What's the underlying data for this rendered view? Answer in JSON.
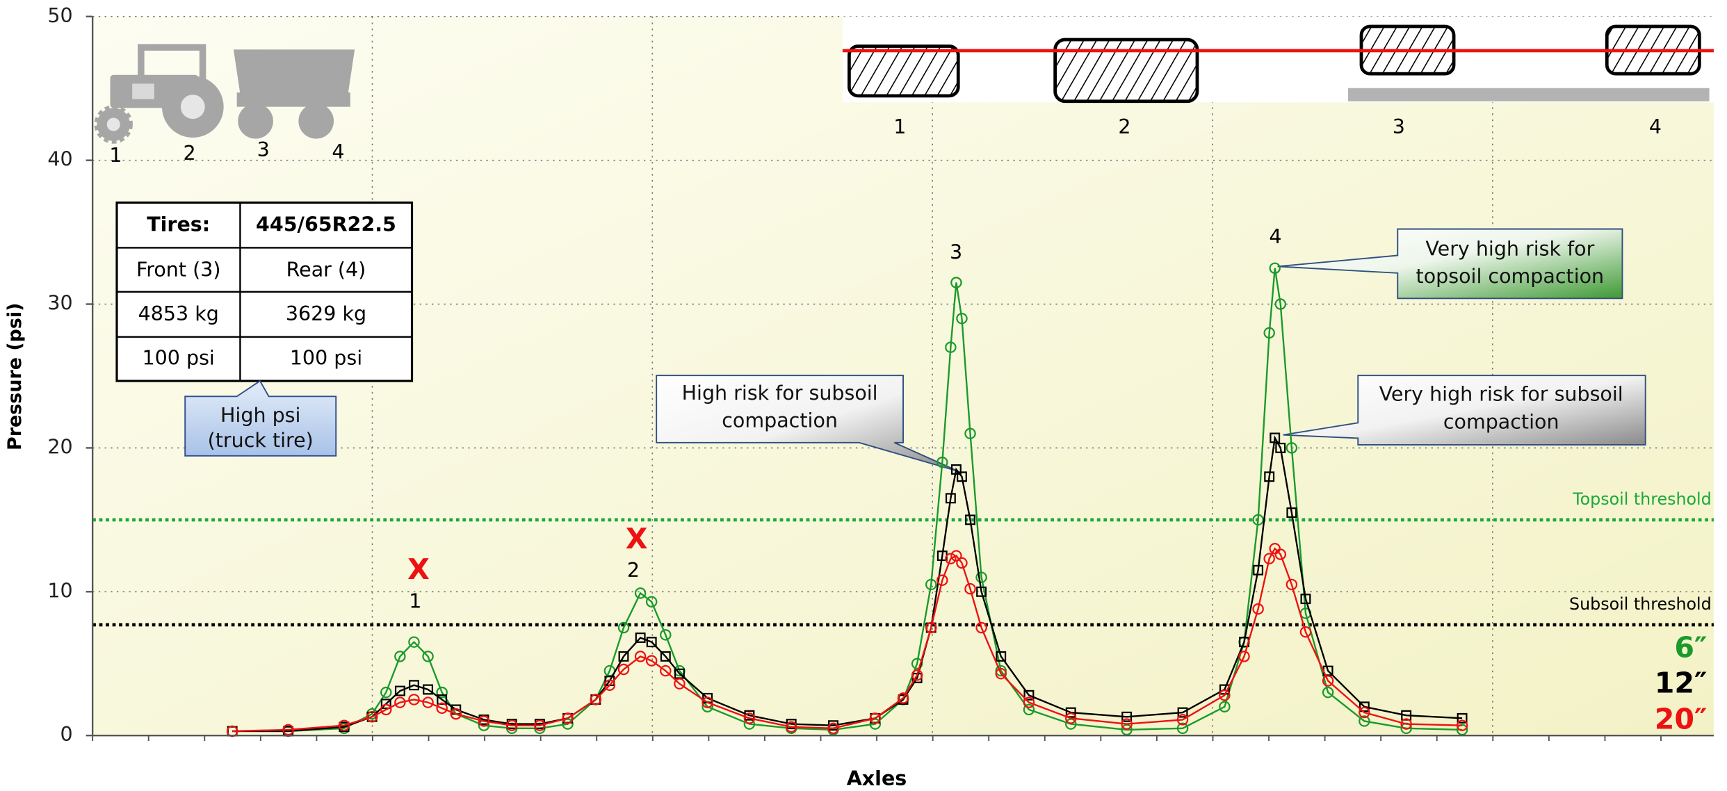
{
  "chart_data": {
    "type": "line",
    "y_label": "Pressure (psi)",
    "x_label": "Axles",
    "ylim": [
      0,
      50
    ],
    "yticks": [
      0,
      10,
      20,
      30,
      40,
      50
    ],
    "xlim": [
      0,
      5.8
    ],
    "grid": true,
    "x": [
      0.5,
      0.7,
      0.9,
      1.0,
      1.05,
      1.1,
      1.15,
      1.2,
      1.25,
      1.3,
      1.4,
      1.5,
      1.6,
      1.7,
      1.8,
      1.85,
      1.9,
      1.96,
      2.0,
      2.05,
      2.1,
      2.2,
      2.35,
      2.5,
      2.65,
      2.8,
      2.9,
      2.95,
      3.0,
      3.04,
      3.07,
      3.09,
      3.11,
      3.14,
      3.18,
      3.25,
      3.35,
      3.5,
      3.7,
      3.9,
      4.05,
      4.12,
      4.17,
      4.21,
      4.23,
      4.25,
      4.29,
      4.34,
      4.42,
      4.55,
      4.7,
      4.9
    ],
    "series": [
      {
        "name": "6″",
        "color": "#1a9a2a",
        "marker": "circle",
        "values": [
          0.3,
          0.3,
          0.5,
          1.5,
          3.0,
          5.5,
          6.5,
          5.5,
          3.0,
          1.5,
          0.7,
          0.5,
          0.5,
          0.8,
          2.5,
          4.5,
          7.5,
          9.9,
          9.3,
          7.0,
          4.5,
          2.0,
          0.8,
          0.5,
          0.4,
          0.8,
          2.5,
          5.0,
          10.5,
          19,
          27,
          31.5,
          29,
          21,
          11,
          4.5,
          1.8,
          0.8,
          0.4,
          0.5,
          2.0,
          6.5,
          15,
          28,
          32.5,
          30,
          20,
          8.5,
          3.0,
          1.0,
          0.5,
          0.4
        ]
      },
      {
        "name": "12″",
        "color": "#000000",
        "marker": "square",
        "values": [
          0.3,
          0.3,
          0.6,
          1.3,
          2.2,
          3.1,
          3.5,
          3.2,
          2.5,
          1.8,
          1.1,
          0.8,
          0.8,
          1.2,
          2.5,
          3.8,
          5.5,
          6.8,
          6.5,
          5.5,
          4.3,
          2.6,
          1.4,
          0.8,
          0.7,
          1.2,
          2.5,
          4.0,
          7.5,
          12.5,
          16.5,
          18.5,
          18,
          15,
          10,
          5.5,
          2.8,
          1.6,
          1.3,
          1.6,
          3.2,
          6.5,
          11.5,
          18,
          20.7,
          20,
          15.5,
          9.5,
          4.5,
          2.0,
          1.4,
          1.2
        ]
      },
      {
        "name": "20″",
        "color": "#ee1111",
        "marker": "circle",
        "values": [
          0.3,
          0.4,
          0.7,
          1.3,
          1.8,
          2.3,
          2.5,
          2.3,
          1.9,
          1.5,
          1.0,
          0.7,
          0.7,
          1.2,
          2.5,
          3.5,
          4.6,
          5.5,
          5.2,
          4.5,
          3.6,
          2.3,
          1.2,
          0.6,
          0.5,
          1.2,
          2.6,
          4.2,
          7.5,
          10.8,
          12.3,
          12.5,
          12,
          10.2,
          7.5,
          4.3,
          2.3,
          1.2,
          0.8,
          1.1,
          2.8,
          5.5,
          8.8,
          12.3,
          13,
          12.6,
          10.5,
          7.2,
          3.8,
          1.6,
          0.8,
          0.7
        ]
      }
    ],
    "thresholds": [
      {
        "label": "Topsoil threshold",
        "value": 15,
        "color": "#1aa83a"
      },
      {
        "label": "Subsoil threshold",
        "value": 7.7,
        "color": "#000000"
      }
    ],
    "peak_labels": [
      "1",
      "2",
      "3",
      "4"
    ],
    "excluded_marks": [
      "X",
      "X"
    ],
    "tractor_labels": [
      "1",
      "2",
      "3",
      "4"
    ],
    "tire_labels": [
      "1",
      "2",
      "3",
      "4"
    ],
    "table": {
      "rows": [
        [
          "Tires:",
          "445/65R22.5"
        ],
        [
          "Front (3)",
          "Rear (4)"
        ],
        [
          "4853 kg",
          "3629 kg"
        ],
        [
          "100 psi",
          "100 psi"
        ]
      ]
    },
    "callouts": [
      {
        "lines": [
          "High psi",
          "(truck tire)"
        ]
      },
      {
        "lines": [
          "High risk for subsoil",
          "compaction"
        ]
      },
      {
        "lines": [
          "Very high risk for subsoil",
          "compaction"
        ]
      },
      {
        "lines": [
          "Very high risk for",
          "topsoil compaction"
        ]
      }
    ]
  }
}
